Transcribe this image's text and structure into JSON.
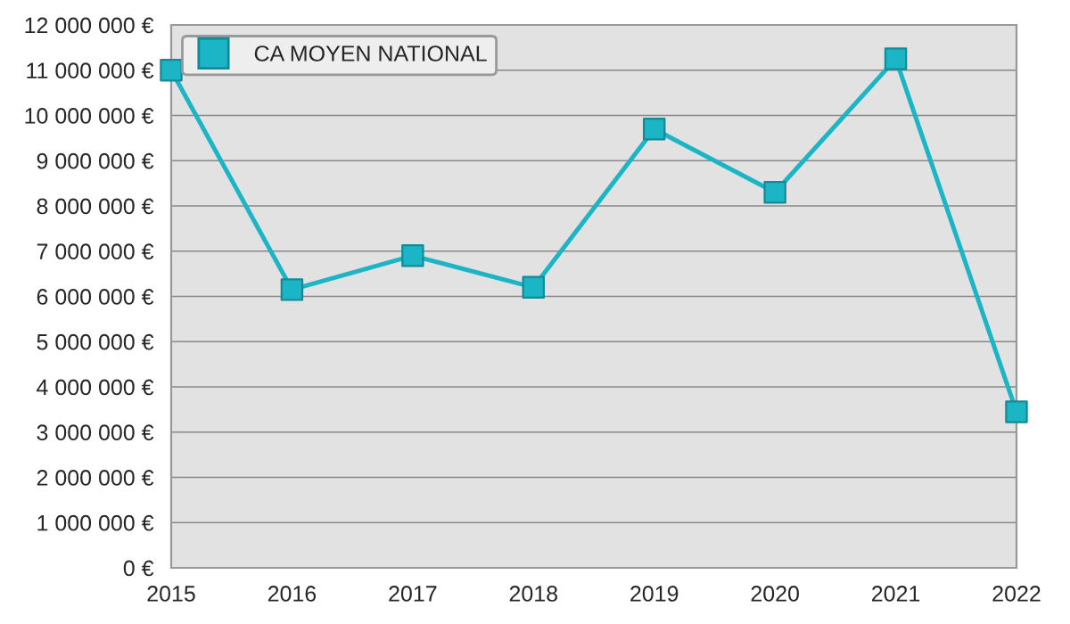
{
  "chart_data": {
    "type": "line",
    "x": [
      2015,
      2016,
      2017,
      2018,
      2019,
      2020,
      2021,
      2022
    ],
    "series": [
      {
        "name": "CA MOYEN NATIONAL",
        "color": "#1cb5c6",
        "values": [
          11000000,
          6150000,
          6900000,
          6200000,
          9700000,
          8300000,
          11250000,
          3450000
        ]
      }
    ],
    "xlim": [
      2015,
      2022
    ],
    "xticks": [
      2015,
      2016,
      2017,
      2018,
      2019,
      2020,
      2021,
      2022
    ],
    "ylim": [
      0,
      12000000
    ],
    "yticks": [
      {
        "value": 0,
        "label": "0 €"
      },
      {
        "value": 1000000,
        "label": "1 000 000 €"
      },
      {
        "value": 2000000,
        "label": "2 000 000 €"
      },
      {
        "value": 3000000,
        "label": "3 000 000 €"
      },
      {
        "value": 4000000,
        "label": "4 000 000 €"
      },
      {
        "value": 5000000,
        "label": "5 000 000 €"
      },
      {
        "value": 6000000,
        "label": "6 000 000 €"
      },
      {
        "value": 7000000,
        "label": "7 000 000 €"
      },
      {
        "value": 8000000,
        "label": "8 000 000 €"
      },
      {
        "value": 9000000,
        "label": "9 000 000 €"
      },
      {
        "value": 10000000,
        "label": "10 000 000 €"
      },
      {
        "value": 11000000,
        "label": "11 000 000 €"
      },
      {
        "value": 12000000,
        "label": "12 000 000 €"
      }
    ],
    "grid": "y",
    "legend": "top left",
    "marker": "square",
    "line_style": "solid"
  }
}
